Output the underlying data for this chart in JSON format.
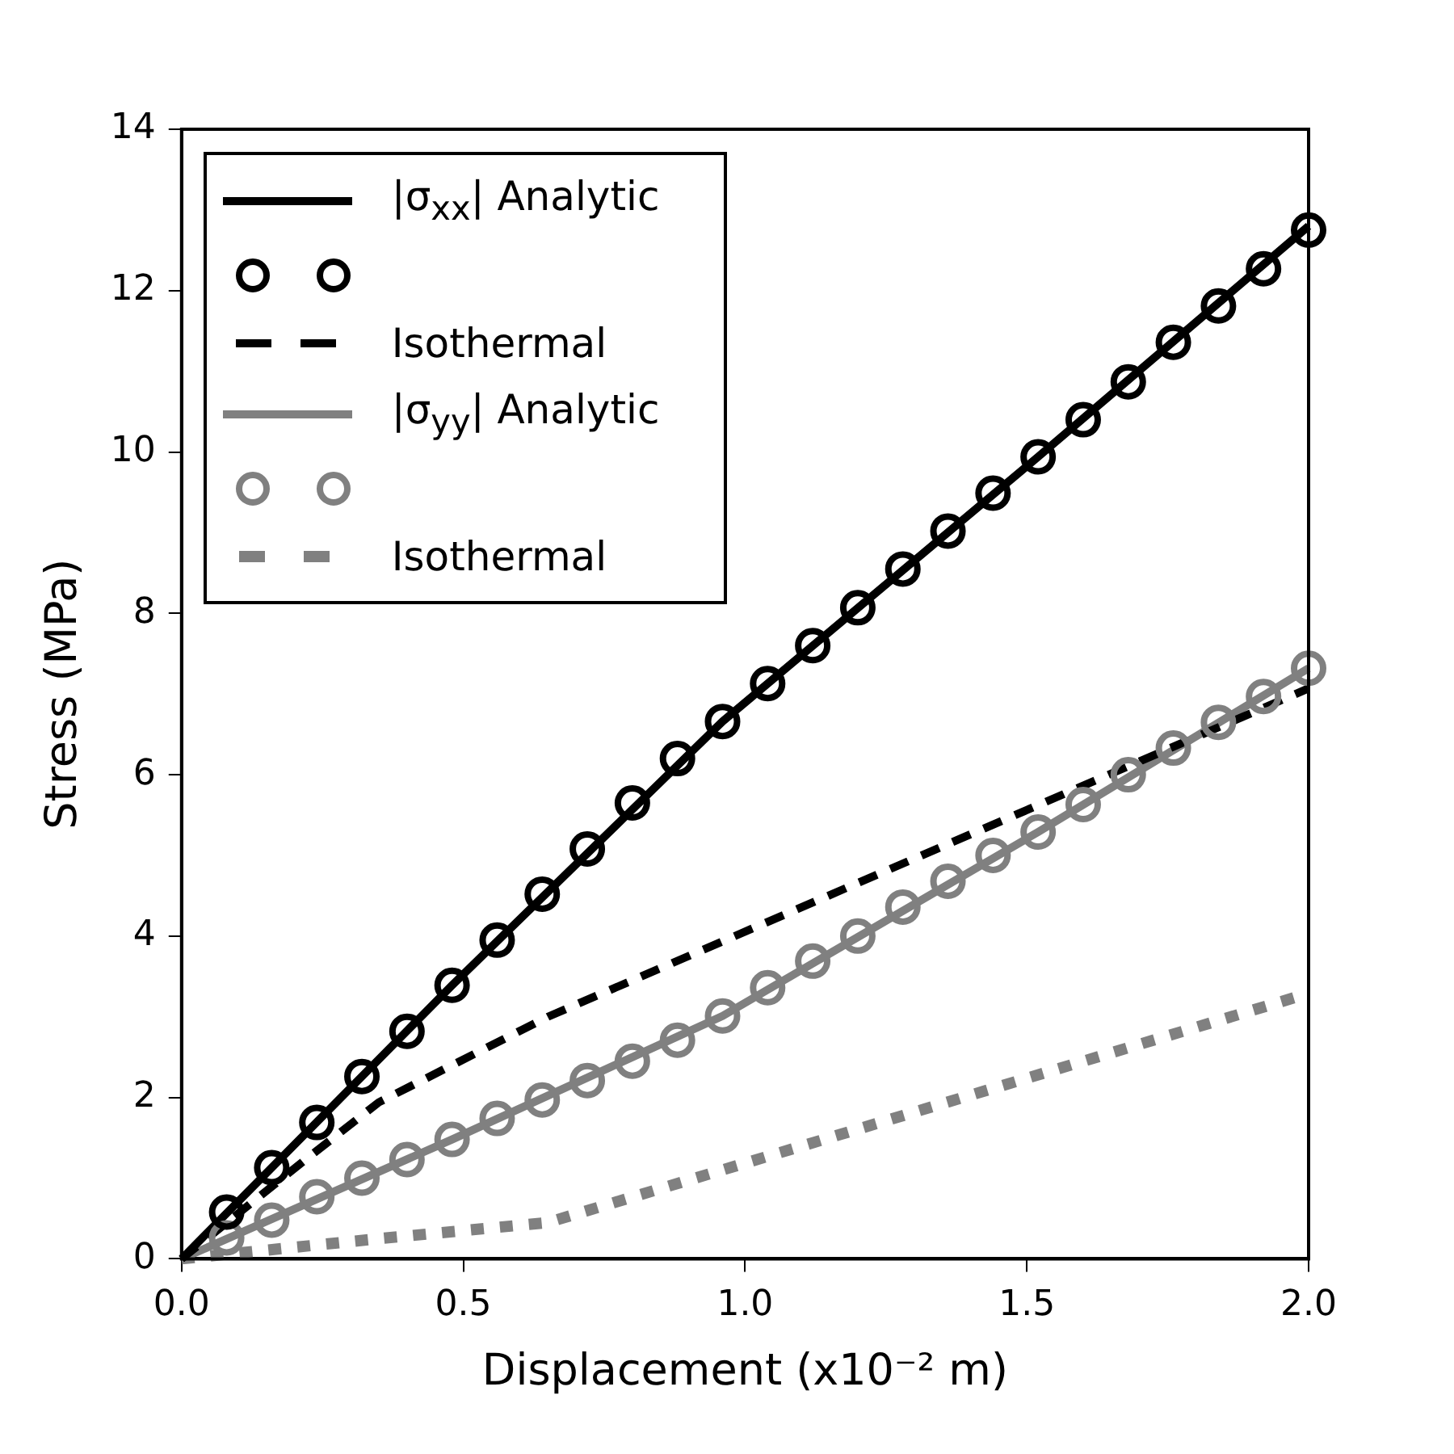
{
  "chart_data": {
    "type": "line",
    "xlabel": "Displacement (x10⁻² m)",
    "ylabel": "Stress (MPa)",
    "xlim": [
      0,
      2
    ],
    "xticks": [
      {
        "value": 0,
        "label": "0.0"
      },
      {
        "value": 0.5,
        "label": "0.5"
      },
      {
        "value": 1,
        "label": "1.0"
      },
      {
        "value": 1.5,
        "label": "1.5"
      },
      {
        "value": 2,
        "label": "2.0"
      }
    ],
    "ylim": [
      0,
      14
    ],
    "yticks": [
      0,
      2,
      4,
      6,
      8,
      10,
      12,
      14
    ],
    "grid": false,
    "legend": "top left",
    "series": [
      {
        "name": "|σ$_{xx}$| Analytic",
        "line_style": "solid",
        "marker": "none",
        "color": "#000000",
        "x": [
          0,
          0.48,
          0.96,
          1.52,
          2.0
        ],
        "values": [
          0,
          3.39,
          6.66,
          9.94,
          12.8
        ]
      },
      {
        "type": "scatter",
        "marker": "circle",
        "color": "#000000",
        "x": [
          0.08,
          0.16,
          0.24,
          0.32,
          0.4,
          0.48,
          0.56,
          0.64,
          0.72,
          0.8,
          0.88,
          0.96,
          1.04,
          1.12,
          1.2,
          1.28,
          1.36,
          1.44,
          1.52,
          1.6,
          1.68,
          1.76,
          1.84,
          1.92,
          2.0
        ],
        "values": [
          0.58,
          1.13,
          1.69,
          2.26,
          2.82,
          3.39,
          3.95,
          4.52,
          5.08,
          5.65,
          6.2,
          6.66,
          7.13,
          7.6,
          8.07,
          8.55,
          9.02,
          9.49,
          9.94,
          10.4,
          10.87,
          11.36,
          11.81,
          12.27,
          12.75
        ]
      },
      {
        "name": "Isothermal",
        "line_style": "dashed",
        "marker": "none",
        "color": "#000000",
        "x": [
          0,
          0.22,
          0.35,
          0.48,
          0.65,
          2.0
        ],
        "values": [
          0,
          1.23,
          1.94,
          2.4,
          3.0,
          7.07
        ]
      },
      {
        "name": "|σ$_{yy}$| Analytic",
        "line_style": "solid",
        "marker": "none",
        "color": "#808080",
        "x": [
          0,
          0.48,
          0.96,
          1.52,
          2.0
        ],
        "values": [
          0,
          1.48,
          3.01,
          5.29,
          7.32
        ]
      },
      {
        "type": "scatter",
        "marker": "circle",
        "color": "#808080",
        "x": [
          0.08,
          0.16,
          0.24,
          0.32,
          0.4,
          0.48,
          0.56,
          0.64,
          0.72,
          0.8,
          0.88,
          0.96,
          1.04,
          1.12,
          1.2,
          1.28,
          1.36,
          1.44,
          1.52,
          1.6,
          1.68,
          1.76,
          1.84,
          1.92,
          2.0
        ],
        "values": [
          0.26,
          0.48,
          0.77,
          1.0,
          1.23,
          1.48,
          1.74,
          1.97,
          2.21,
          2.45,
          2.71,
          3.01,
          3.36,
          3.69,
          4.0,
          4.36,
          4.68,
          5.0,
          5.29,
          5.63,
          6.0,
          6.33,
          6.65,
          6.97,
          7.32
        ]
      },
      {
        "name": "Isothermal",
        "line_style": "dotted",
        "marker": "none",
        "color": "#808080",
        "x": [
          0,
          0.35,
          0.65,
          2.0
        ],
        "values": [
          0,
          0.25,
          0.45,
          3.29
        ]
      }
    ]
  }
}
